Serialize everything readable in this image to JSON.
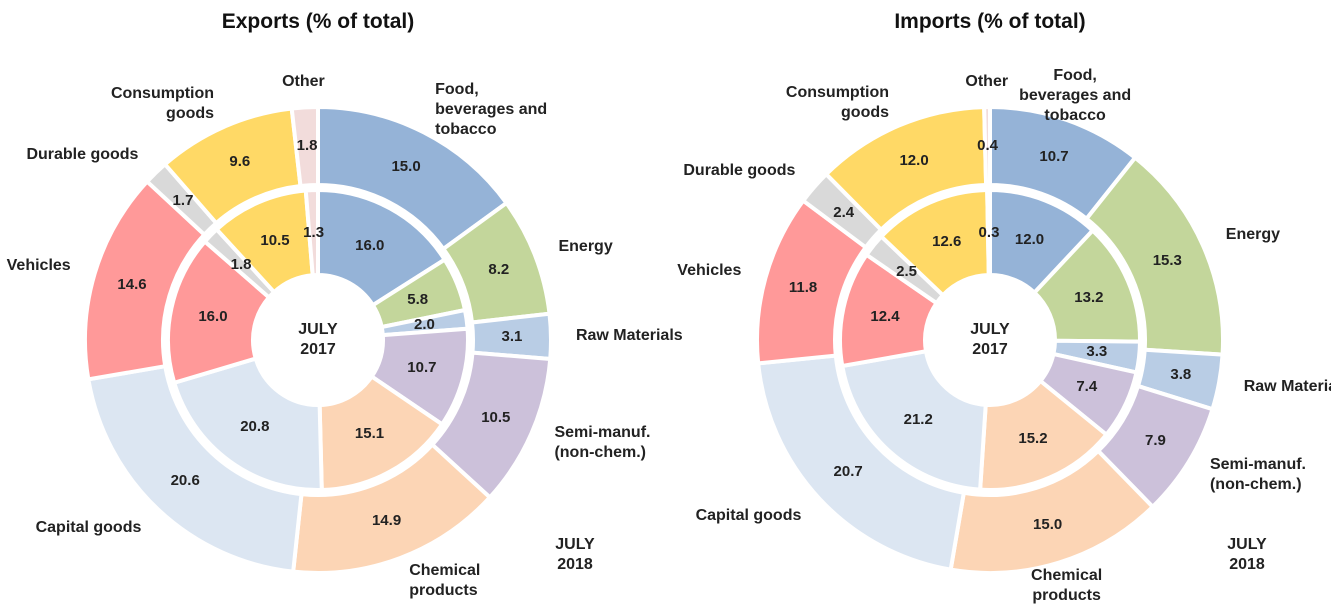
{
  "chart_data": [
    {
      "type": "donut",
      "title": "Exports (% of total)",
      "categories": [
        "Food, beverages and tobacco",
        "Energy",
        "Raw Materials",
        "Semi-manuf. (non-chem.)",
        "Chemical products",
        "Capital goods",
        "Vehicles",
        "Durable goods",
        "Consumption goods",
        "Other"
      ],
      "colors": [
        "#95b3d7",
        "#c3d69b",
        "#b9cde5",
        "#ccc1da",
        "#fcd5b5",
        "#dce6f2",
        "#ff9999",
        "#d9d9d9",
        "#ffd966",
        "#f2dcdb"
      ],
      "series": [
        {
          "name": "JULY 2017",
          "values": [
            16.0,
            5.8,
            2.0,
            10.7,
            15.1,
            20.8,
            16.0,
            1.8,
            10.5,
            1.3
          ],
          "value_labels": [
            "16.0",
            "5.8",
            "2.0",
            "10.7",
            "15.1",
            "20.8",
            "16.0",
            "1.8",
            "10.5",
            "1.3"
          ]
        },
        {
          "name": "JULY 2018",
          "values": [
            15.0,
            8.2,
            3.1,
            10.5,
            14.9,
            20.6,
            14.6,
            1.7,
            9.6,
            1.8
          ],
          "value_labels": [
            "15.0",
            "8.2",
            "3.1",
            "10.5",
            "14.9",
            "20.6",
            "14.6",
            "1.7",
            "9.6",
            "1.8"
          ]
        }
      ]
    },
    {
      "type": "donut",
      "title": "Imports (% of total)",
      "categories": [
        "Food, beverages and tobacco",
        "Energy",
        "Raw Materials",
        "Semi-manuf. (non-chem.)",
        "Chemical products",
        "Capital goods",
        "Vehicles",
        "Durable goods",
        "Consumption goods",
        "Other"
      ],
      "colors": [
        "#95b3d7",
        "#c3d69b",
        "#b9cde5",
        "#ccc1da",
        "#fcd5b5",
        "#dce6f2",
        "#ff9999",
        "#d9d9d9",
        "#ffd966",
        "#f2dcdb"
      ],
      "series": [
        {
          "name": "JULY 2017",
          "values": [
            12.0,
            13.2,
            3.3,
            7.4,
            15.2,
            21.2,
            12.4,
            2.5,
            12.6,
            0.3
          ],
          "value_labels": [
            "12.0",
            "13.2",
            "3.3",
            "7.4",
            "15.2",
            "21.2",
            "12.4",
            "2.5",
            "12.6",
            "0.3"
          ]
        },
        {
          "name": "JULY 2018",
          "values": [
            10.7,
            15.3,
            3.8,
            7.9,
            15.0,
            20.7,
            11.8,
            2.4,
            12.0,
            0.4
          ],
          "value_labels": [
            "10.7",
            "15.3",
            "3.8",
            "7.9",
            "15.0",
            "20.7",
            "11.8",
            "2.4",
            "12.0",
            "0.4"
          ]
        }
      ]
    }
  ]
}
